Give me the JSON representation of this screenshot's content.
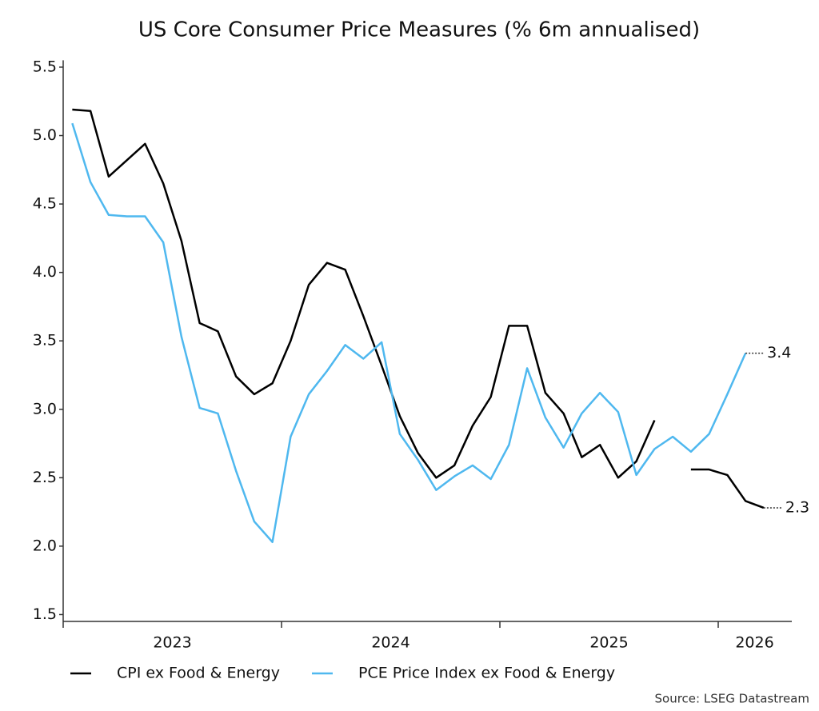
{
  "chart_data": {
    "type": "line",
    "title": "US Core Consumer Price Measures (% 6m annualised)",
    "source": "Source: LSEG Datastream",
    "categories": [
      null,
      null,
      null,
      null,
      null,
      "2023",
      null,
      null,
      null,
      null,
      null,
      null,
      null,
      null,
      null,
      null,
      null,
      "2024",
      null,
      null,
      null,
      null,
      null,
      null,
      null,
      null,
      null,
      null,
      null,
      "2025",
      null,
      null,
      null,
      null,
      null,
      null,
      null,
      "2026",
      null
    ],
    "series": [
      {
        "name": "CPI ex Food & Energy",
        "color": "#000000",
        "values": [
          5.19,
          5.18,
          4.7,
          4.82,
          4.94,
          4.65,
          4.23,
          3.63,
          3.57,
          3.24,
          3.11,
          3.19,
          3.5,
          3.91,
          4.07,
          4.02,
          3.68,
          3.32,
          2.95,
          2.68,
          2.5,
          2.59,
          2.88,
          3.09,
          3.61,
          3.61,
          3.12,
          2.97,
          2.65,
          2.74,
          2.5,
          2.62,
          2.92,
          null,
          2.56,
          2.56,
          2.52,
          2.33,
          2.28
        ],
        "value_labels": [
          null,
          null,
          null,
          null,
          null,
          null,
          null,
          null,
          null,
          null,
          null,
          null,
          null,
          null,
          null,
          null,
          null,
          null,
          null,
          null,
          null,
          null,
          null,
          null,
          null,
          null,
          null,
          null,
          null,
          null,
          null,
          null,
          null,
          null,
          null,
          null,
          null,
          null,
          "2.3"
        ]
      },
      {
        "name": "PCE Price Index ex Food & Energy",
        "color": "#4fb8ef",
        "values": [
          5.09,
          4.66,
          4.42,
          4.41,
          4.41,
          4.22,
          3.53,
          3.01,
          2.97,
          2.55,
          2.18,
          2.03,
          2.8,
          3.11,
          3.28,
          3.47,
          3.37,
          3.49,
          2.82,
          2.63,
          2.41,
          2.51,
          2.59,
          2.49,
          2.74,
          3.3,
          2.94,
          2.72,
          2.97,
          3.12,
          2.98,
          2.52,
          2.71,
          2.8,
          2.69,
          2.82,
          3.11,
          3.41,
          null
        ],
        "value_labels": [
          null,
          null,
          null,
          null,
          null,
          null,
          null,
          null,
          null,
          null,
          null,
          null,
          null,
          null,
          null,
          null,
          null,
          null,
          null,
          null,
          null,
          null,
          null,
          null,
          null,
          null,
          null,
          null,
          null,
          null,
          null,
          null,
          null,
          null,
          null,
          null,
          null,
          "3.4",
          null
        ]
      }
    ],
    "ylim": [
      1.45,
      5.55
    ],
    "yticks": [
      {
        "value": 1.5,
        "label": "1.5"
      },
      {
        "value": 2,
        "label": "2.0"
      },
      {
        "value": 2.5,
        "label": "2.5"
      },
      {
        "value": 3,
        "label": "3.0"
      },
      {
        "value": 3.5,
        "label": "3.5"
      },
      {
        "value": 4,
        "label": "4.0"
      },
      {
        "value": 4.5,
        "label": "4.5"
      },
      {
        "value": 5,
        "label": "5.0"
      },
      {
        "value": 5.5,
        "label": "5.5"
      }
    ],
    "grid": false,
    "legend": "bottom-left"
  }
}
